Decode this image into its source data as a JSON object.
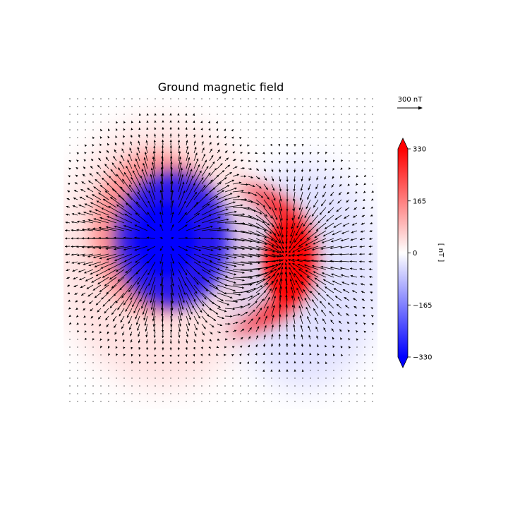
{
  "chart_data": {
    "type": "heatmap",
    "title": "Ground magnetic field",
    "quiver_key_label": "300 nT",
    "quiver_key_magnitude": 300,
    "colorbar": {
      "label": "[ nT ]",
      "min": -330,
      "max": 330,
      "ticks": [
        330,
        165,
        0,
        -165,
        -330
      ],
      "tick_labels": [
        "330",
        "165",
        "0",
        "−165",
        "−330"
      ],
      "extend": "both",
      "colormap": "bwr"
    },
    "field_features": [
      {
        "sign": "negative",
        "peak_value": -330,
        "shape": "round core",
        "location": "west-center"
      },
      {
        "sign": "positive",
        "peak_value": 330,
        "shape": "crescent",
        "location": "east-center"
      },
      {
        "sign": "positive",
        "peak_value": 30,
        "shape": "weak halo",
        "location": "west"
      },
      {
        "sign": "negative",
        "peak_value": -30,
        "shape": "weak halo",
        "location": "east"
      }
    ],
    "vector_field": "horizontal ground magnetic perturbation vectors (arrows), strongest around the negative core and along the positive crescent",
    "grid": false,
    "axes_visible": false
  },
  "colors": {
    "positive": "#ff0000",
    "zero": "#ffffff",
    "negative": "#0000ff",
    "arrows": "#000000"
  }
}
